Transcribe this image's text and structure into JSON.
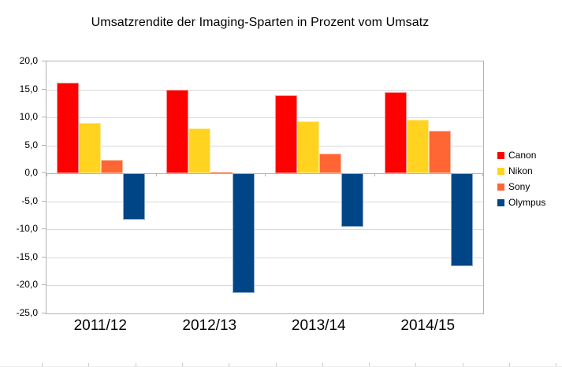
{
  "chart_data": {
    "type": "bar",
    "title": "Umsatzrendite der Imaging-Sparten in Prozent vom Umsatz",
    "categories": [
      "2011/12",
      "2012/13",
      "2013/14",
      "2014/15"
    ],
    "series": [
      {
        "name": "Canon",
        "color": "#ff0000",
        "values": [
          16.2,
          14.9,
          14.0,
          14.5
        ]
      },
      {
        "name": "Nikon",
        "color": "#ffd320",
        "values": [
          9.1,
          8.0,
          9.3,
          9.6
        ]
      },
      {
        "name": "Sony",
        "color": "#ff6633",
        "values": [
          2.4,
          0.2,
          3.5,
          7.6
        ]
      },
      {
        "name": "Olympus",
        "color": "#004586",
        "values": [
          -8.3,
          -21.4,
          -9.6,
          -16.6
        ]
      }
    ],
    "xlabel": "",
    "ylabel": "",
    "ylim": [
      -25,
      20
    ],
    "ytick_step": 5,
    "ytick_labels": [
      "20,0",
      "15,0",
      "10,0",
      "5,0",
      "0,0",
      "-5,0",
      "-10,0",
      "-15,0",
      "-20,0",
      "-25,0"
    ],
    "grid": "horizontal",
    "legend_position": "right",
    "colors": {
      "axis": "#b2b2b2",
      "gridline": "#d9d9d9",
      "background": "#ffffff",
      "text": "#000000"
    }
  }
}
